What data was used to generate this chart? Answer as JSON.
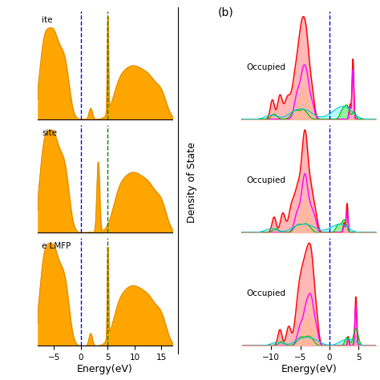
{
  "left_xlim": [
    -8,
    17
  ],
  "left_blue_vline": 0,
  "left_green_vline": 5,
  "right_xlim": [
    -15,
    8
  ],
  "right_blue_vline": 0,
  "orange_fill_color": "#FFA500",
  "orange_line_color": "#E08800",
  "red_fill_color": "#FFB0B0",
  "red_line_color": "#FF0000",
  "magenta_line_color": "#FF00FF",
  "yellow_fill_color": "#FFFF00",
  "green_line_color": "#00BB00",
  "green_fill_color": "#90EE90",
  "cyan_fill_color": "#AAFFFF",
  "cyan_line_color": "#00CCCC",
  "row_labels_left": [
    "ite",
    "site",
    "e LMFP"
  ],
  "row_labels_right": [
    "Occupied",
    "Occupied",
    "Occupied"
  ],
  "xlabel_left": "Energy(eV)",
  "xlabel_right": "Energy(eV)",
  "ylabel_right": "Density of State",
  "label_b": "(b)"
}
